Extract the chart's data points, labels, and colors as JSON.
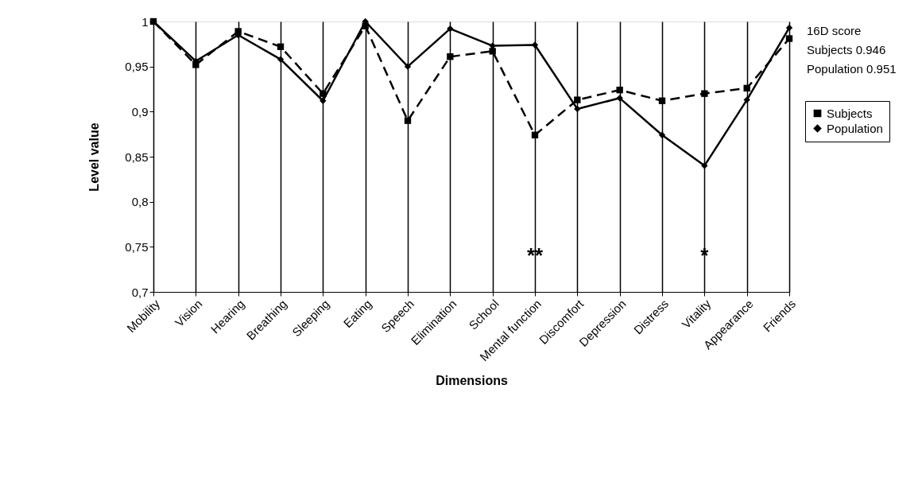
{
  "chart_data": {
    "type": "line",
    "xlabel": "Dimensions",
    "ylabel": "Level value",
    "categories": [
      "Mobility",
      "Vision",
      "Hearing",
      "Breathing",
      "Sleeping",
      "Eating",
      "Speech",
      "Elimination",
      "School",
      "Mental function",
      "Discomfort",
      "Depression",
      "Distress",
      "Vitality",
      "Appearance",
      "Friends"
    ],
    "series": [
      {
        "name": "Subjects",
        "color": "#000000",
        "marker": "square",
        "line_style": "dashed",
        "values": [
          1.0,
          0.952,
          0.989,
          0.972,
          0.92,
          0.995,
          0.89,
          0.961,
          0.967,
          0.874,
          0.913,
          0.924,
          0.912,
          0.92,
          0.926,
          0.981
        ]
      },
      {
        "name": "Population",
        "color": "#000000",
        "marker": "diamond",
        "line_style": "solid",
        "values": [
          1.0,
          0.956,
          0.985,
          0.958,
          0.912,
          1.0,
          0.95,
          0.992,
          0.973,
          0.974,
          0.903,
          0.915,
          0.874,
          0.84,
          0.913,
          0.993
        ]
      }
    ],
    "ylim": [
      0.7,
      1.0
    ],
    "yticks": [
      {
        "value": 0.7,
        "label": "0,7"
      },
      {
        "value": 0.75,
        "label": "0,75"
      },
      {
        "value": 0.8,
        "label": "0,8"
      },
      {
        "value": 0.85,
        "label": "0,85"
      },
      {
        "value": 0.9,
        "label": "0,9"
      },
      {
        "value": 0.95,
        "label": "0,95"
      },
      {
        "value": 1.0,
        "label": "1"
      }
    ],
    "grid": "x",
    "legend": "right",
    "annotations": [
      "**",
      "*",
      "16D score",
      "Subjects   0.946",
      "Population 0.951"
    ]
  }
}
